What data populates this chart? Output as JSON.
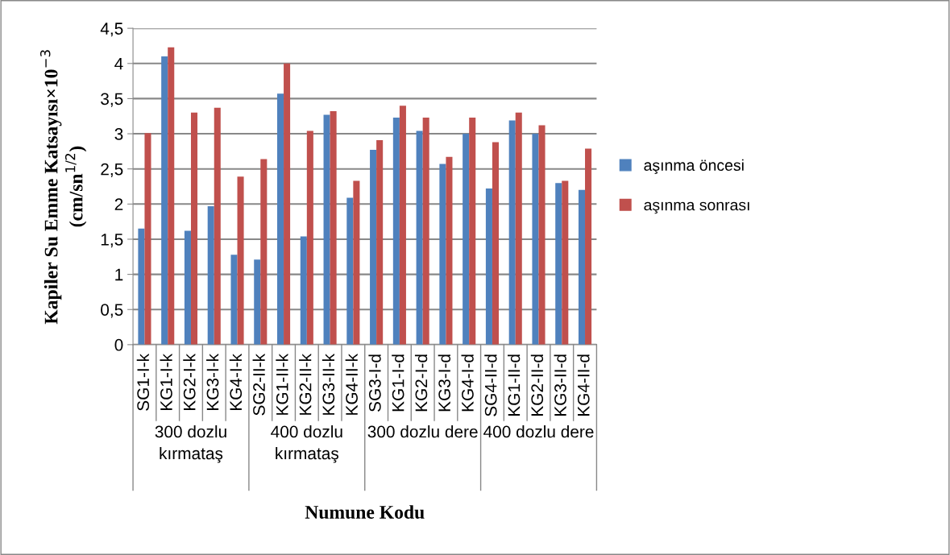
{
  "chart_data": {
    "type": "bar",
    "xlabel": "Numune Kodu",
    "ylabel": "Kapiler Su Emme Katsayısı×10$^{−3}$\n(cm/sn$^{1/2}$)",
    "categories": [
      "SG1-I-k",
      "KG1-I-k",
      "KG2-I-k",
      "KG3-I-k",
      "KG4-I-k",
      "SG2-II-k",
      "KG1-II-k",
      "KG2-II-k",
      "KG3-II-k",
      "KG4-II-k",
      "SG3-I-d",
      "KG1-I-d",
      "KG2-I-d",
      "KG3-I-d",
      "KG4-I-d",
      "SG4-II-d",
      "KG1-II-d",
      "KG2-II-d",
      "KG3-II-d",
      "KG4-II-d"
    ],
    "series": [
      {
        "name": "aşınma öncesi",
        "color": "#4f81bd",
        "values": [
          1.65,
          4.1,
          1.62,
          1.97,
          1.28,
          1.21,
          3.57,
          1.54,
          3.27,
          2.09,
          2.77,
          3.23,
          3.04,
          2.57,
          3.0,
          2.22,
          3.19,
          3.0,
          2.3,
          2.2
        ]
      },
      {
        "name": "aşınma sonrası",
        "color": "#c0504d",
        "values": [
          3.01,
          4.23,
          3.3,
          3.37,
          2.39,
          2.64,
          4.0,
          3.04,
          3.32,
          2.33,
          2.91,
          3.4,
          3.23,
          2.67,
          3.23,
          2.88,
          3.3,
          3.12,
          2.33,
          2.79
        ]
      }
    ],
    "annotations": [
      "300 dozlu\nkırmataş",
      "400 dozlu\nkırmataş",
      "300 dozlu dere",
      "400 dozlu dere"
    ],
    "ylim": [
      0,
      4.5
    ],
    "yticks": [
      0,
      {
        "value": 0.5,
        "label": "0,5"
      },
      1,
      {
        "value": 1.5,
        "label": "1,5"
      },
      2,
      {
        "value": 2.5,
        "label": "2,5"
      },
      3,
      {
        "value": 3.5,
        "label": "3,5"
      },
      4,
      {
        "value": 4.5,
        "label": "4,5"
      }
    ],
    "grid": "y",
    "legend": "right"
  }
}
